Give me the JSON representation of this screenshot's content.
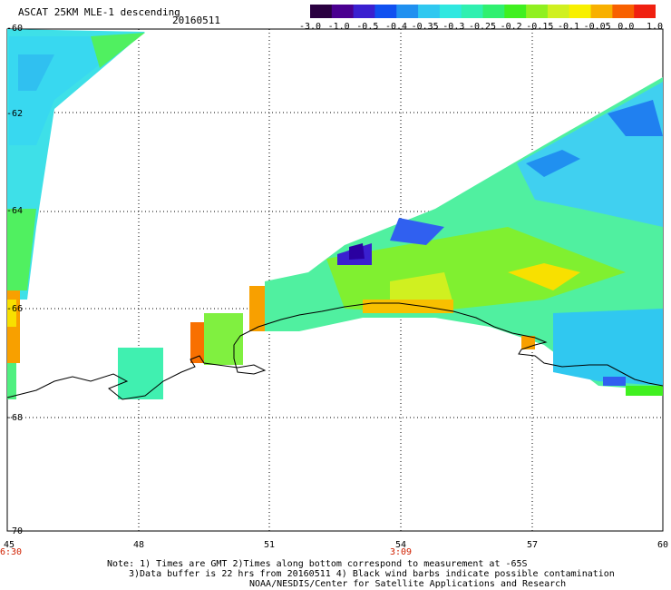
{
  "title": "ASCAT 25KM MLE-1 descending",
  "date": "20160511",
  "colorbar": {
    "colors": [
      "#2a0040",
      "#4a0090",
      "#3a20d0",
      "#1050f0",
      "#2090f0",
      "#30c8f0",
      "#30e8e0",
      "#30f0b0",
      "#30f070",
      "#40f020",
      "#90f020",
      "#d0f020",
      "#f8f000",
      "#f8b000",
      "#f86000",
      "#f02010"
    ],
    "labels": [
      "-3.0",
      "-1.0",
      "-0.5",
      "-0.4",
      "-0.35",
      "-0.3",
      "-0.25",
      "-0.2",
      "-0.15",
      "-0.1",
      "-0.05",
      "0.0",
      "1.0"
    ]
  },
  "axes": {
    "y_labels": [
      "-60",
      "-62",
      "-64",
      "-66",
      "-68",
      "-70"
    ],
    "x_labels": [
      "45",
      "48",
      "51",
      "54",
      "57",
      "60"
    ],
    "time_labels": [
      "6:30",
      "3:09"
    ]
  },
  "notes": {
    "line1": "Note: 1) Times are GMT 2)Times along bottom correspond to measurement at -65S",
    "line2": "3)Data buffer is 22 hrs from 20160511 4) Black wind barbs indicate possible contamination",
    "line3": "NOAA/NESDIS/Center for Satellite Applications and Research"
  }
}
